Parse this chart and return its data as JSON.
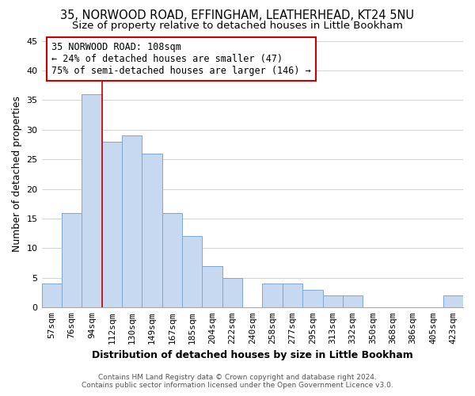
{
  "title": "35, NORWOOD ROAD, EFFINGHAM, LEATHERHEAD, KT24 5NU",
  "subtitle": "Size of property relative to detached houses in Little Bookham",
  "xlabel": "Distribution of detached houses by size in Little Bookham",
  "ylabel": "Number of detached properties",
  "footer_line1": "Contains HM Land Registry data © Crown copyright and database right 2024.",
  "footer_line2": "Contains public sector information licensed under the Open Government Licence v3.0.",
  "bar_labels": [
    "57sqm",
    "76sqm",
    "94sqm",
    "112sqm",
    "130sqm",
    "149sqm",
    "167sqm",
    "185sqm",
    "204sqm",
    "222sqm",
    "240sqm",
    "258sqm",
    "277sqm",
    "295sqm",
    "313sqm",
    "332sqm",
    "350sqm",
    "368sqm",
    "386sqm",
    "405sqm",
    "423sqm"
  ],
  "bar_values": [
    4,
    16,
    36,
    28,
    29,
    26,
    16,
    12,
    7,
    5,
    0,
    4,
    4,
    3,
    2,
    2,
    0,
    0,
    0,
    0,
    2
  ],
  "bar_color": "#c6d9f0",
  "bar_edge_color": "#7da6d1",
  "ylim": [
    0,
    45
  ],
  "yticks": [
    0,
    5,
    10,
    15,
    20,
    25,
    30,
    35,
    40,
    45
  ],
  "vline_x_index": 3,
  "vline_color": "#cc0000",
  "annotation_text": "35 NORWOOD ROAD: 108sqm\n← 24% of detached houses are smaller (47)\n75% of semi-detached houses are larger (146) →",
  "annotation_box_color": "#ffffff",
  "annotation_box_edge": "#cc0000",
  "background_color": "#ffffff",
  "grid_color": "#cccccc",
  "title_fontsize": 10.5,
  "subtitle_fontsize": 9.5,
  "axis_label_fontsize": 9,
  "tick_fontsize": 8,
  "annotation_fontsize": 8.5,
  "footer_fontsize": 6.5
}
